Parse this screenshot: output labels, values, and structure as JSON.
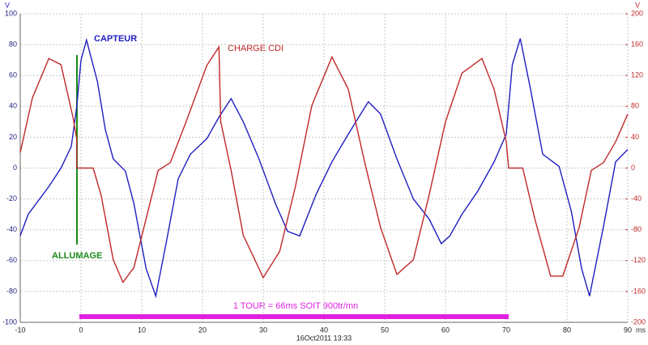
{
  "chart_data": {
    "type": "line",
    "x_label": "ms",
    "y_label": "V",
    "y2_label": "V",
    "footer": "16Oct2011 13:33",
    "annotations": [
      "CAPTEUR",
      "CHARGE CDI",
      "ALLUMAGE",
      "1 TOUR = 66ms SOIT 900tr/mn"
    ],
    "xlim": [
      -10,
      90
    ],
    "xticks": [
      -10,
      0,
      10,
      20,
      30,
      40,
      50,
      60,
      70,
      80,
      90
    ],
    "ylim": [
      -100,
      100
    ],
    "yticks": [
      -100,
      -80,
      -60,
      -40,
      -20,
      0,
      20,
      40,
      60,
      80,
      100
    ],
    "y2lim": [
      -200,
      200
    ],
    "y2ticks": [
      -200,
      -160,
      -120,
      -80,
      -40,
      0,
      40,
      80,
      120,
      160,
      200
    ],
    "grid": true,
    "series": [
      {
        "name": "CAPTEUR",
        "color": "#1f1fbf",
        "axis": "y",
        "x": [
          -10,
          -8.7,
          -5.3,
          -3.3,
          -1.6,
          -0.7,
          0,
          0.9,
          2.7,
          4,
          5.3,
          7.3,
          8.7,
          10.7,
          12.3,
          14,
          16,
          18,
          20.7,
          22.7,
          24.7,
          26.7,
          29.3,
          32,
          34,
          36,
          38.7,
          41.3,
          44,
          47.3,
          49.3,
          52,
          54.7,
          57.3,
          59.3,
          60.7,
          62.7,
          65.3,
          68,
          70,
          71,
          72.3,
          74,
          76,
          78.7,
          80.7,
          82.4,
          83.7,
          86,
          88,
          90
        ],
        "values": [
          -44,
          -30,
          -12,
          0,
          14,
          40,
          70,
          83,
          56,
          25,
          6,
          -2,
          -23,
          -65,
          -83,
          -49,
          -7,
          9,
          19,
          33,
          45,
          30,
          6,
          -23,
          -41,
          -44,
          -17,
          4,
          22,
          43,
          35,
          6,
          -20,
          -33,
          -49,
          -44,
          -30,
          -15,
          4,
          22,
          67,
          84,
          51,
          9,
          1,
          -28,
          -65,
          -83,
          -38,
          4,
          12
        ]
      },
      {
        "name": "CHARGE CDI",
        "color": "#c0282a",
        "axis": "y2",
        "x": [
          -10,
          -8,
          -5.3,
          -3.3,
          -1.3,
          -0.7,
          -0.7,
          2,
          3.3,
          5.3,
          6.9,
          8.7,
          10.7,
          12.7,
          14.7,
          17.3,
          20.7,
          22.7,
          23,
          24.7,
          26.7,
          30,
          32.7,
          35.3,
          38,
          41.3,
          44,
          46.7,
          49.3,
          52,
          54.7,
          57.3,
          60,
          62.7,
          66,
          68,
          70,
          70.4,
          72.7,
          74.7,
          77.3,
          79.3,
          82,
          84,
          86,
          88,
          90
        ],
        "values": [
          20,
          91,
          142,
          134,
          65,
          37,
          0,
          0,
          -35,
          -119,
          -148,
          -129,
          -66,
          -3,
          7,
          60,
          133,
          157,
          60,
          -3,
          -87,
          -142,
          -108,
          -24,
          81,
          144,
          102,
          7,
          -77,
          -138,
          -119,
          -35,
          60,
          123,
          142,
          102,
          34,
          0,
          0,
          -66,
          -140,
          -140,
          -77,
          -3,
          7,
          34,
          70
        ]
      }
    ]
  }
}
